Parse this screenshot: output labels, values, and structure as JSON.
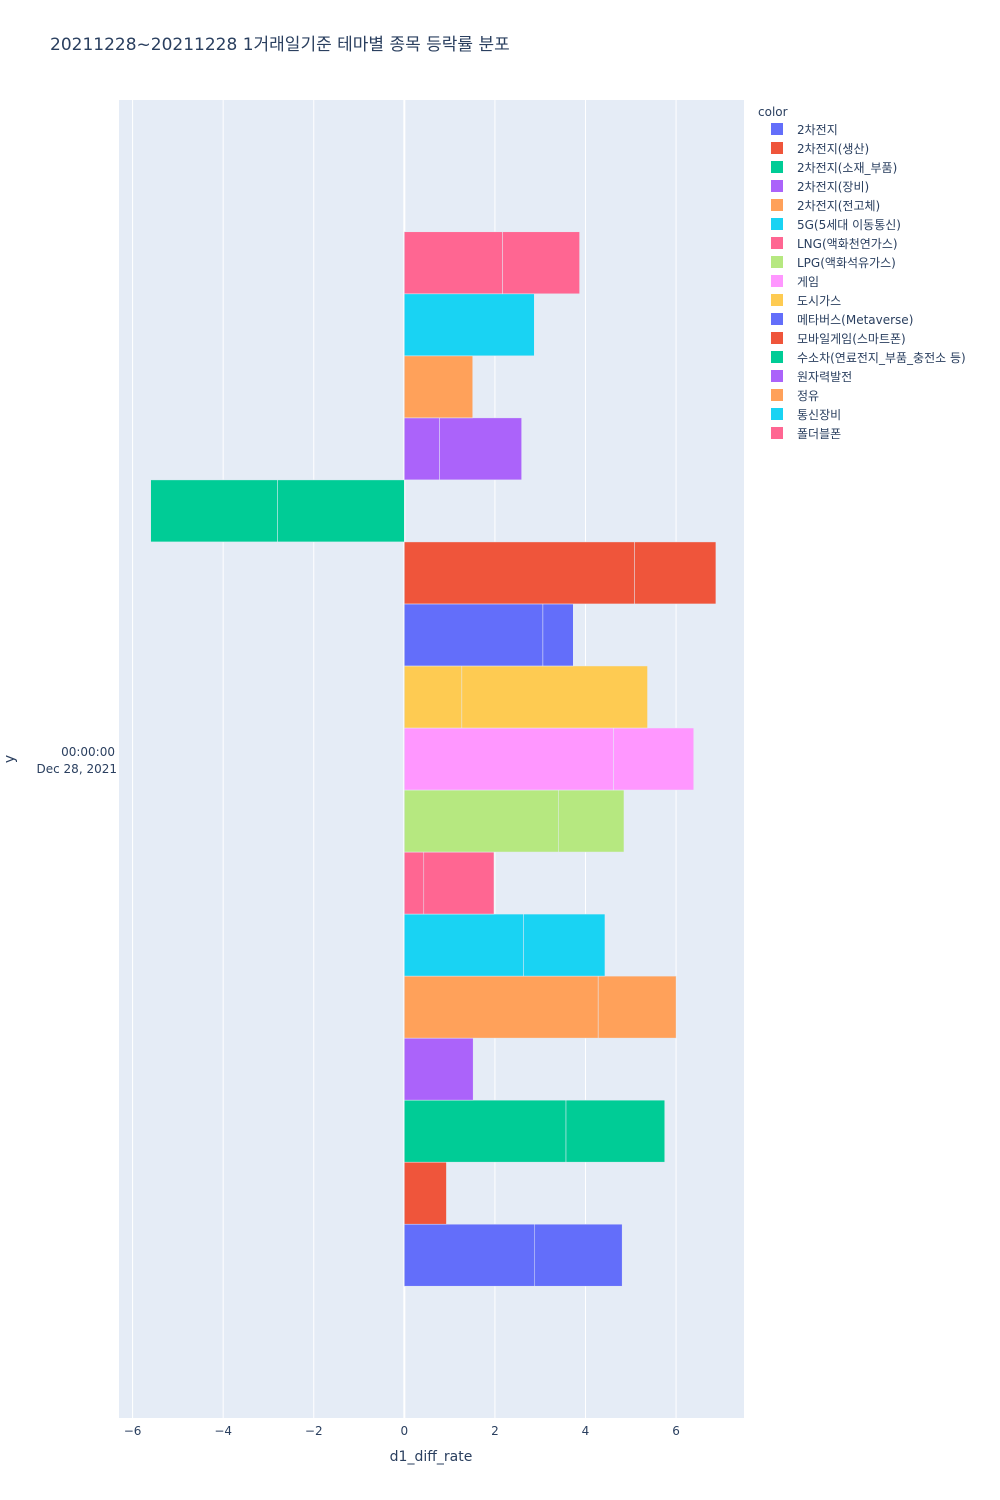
{
  "chart_data": {
    "type": "bar",
    "orientation": "horizontal",
    "barmode": "relative",
    "title": "20211228~20211228 1거래일기준 테마별 종목 등락률 분포",
    "xlabel": "d1_diff_rate",
    "ylabel": "y",
    "y_category_line1": "00:00:00",
    "y_category_line2": "Dec 28, 2021",
    "xlim": [
      -6.3,
      7.5
    ],
    "xticks": [
      -6,
      -4,
      -2,
      0,
      2,
      4,
      6
    ],
    "xtick_labels": [
      "−6",
      "−4",
      "−2",
      "0",
      "2",
      "4",
      "6"
    ],
    "grid": true,
    "legend_title": "color",
    "legend_position": "right",
    "series": [
      {
        "name": "2차전지",
        "color": "#636efa",
        "segments": [
          2.88,
          1.93
        ]
      },
      {
        "name": "2차전지(생산)",
        "color": "#EF553B",
        "segments": [
          0.93
        ]
      },
      {
        "name": "2차전지(소재_부품)",
        "color": "#00cc96",
        "segments": [
          3.57,
          2.18
        ]
      },
      {
        "name": "2차전지(장비)",
        "color": "#ab63fa",
        "segments": [
          1.52
        ]
      },
      {
        "name": "2차전지(전고체)",
        "color": "#FFA15A",
        "segments": [
          4.28,
          1.72
        ]
      },
      {
        "name": "5G(5세대 이동통신)",
        "color": "#19d3f3",
        "segments": [
          2.63,
          1.8
        ]
      },
      {
        "name": "LNG(액화천연가스)",
        "color": "#FF6692",
        "segments": [
          0.43,
          1.55
        ]
      },
      {
        "name": "LPG(액화석유가스)",
        "color": "#B6E880",
        "segments": [
          3.4,
          1.45
        ]
      },
      {
        "name": "게임",
        "color": "#FF97FF",
        "segments": [
          4.62,
          1.77
        ]
      },
      {
        "name": "도시가스",
        "color": "#FECB52",
        "segments": [
          1.27,
          4.1
        ]
      },
      {
        "name": "메타버스(Metaverse)",
        "color": "#636efa",
        "segments": [
          3.06,
          0.67
        ]
      },
      {
        "name": "모바일게임(스마트폰)",
        "color": "#EF553B",
        "segments": [
          5.08,
          1.8
        ]
      },
      {
        "name": "수소차(연료전지_부품_충전소 등)",
        "color": "#00cc96",
        "segments": [
          -2.8,
          -2.8
        ]
      },
      {
        "name": "원자력발전",
        "color": "#ab63fa",
        "segments": [
          0.78,
          1.81
        ]
      },
      {
        "name": "정유",
        "color": "#FFA15A",
        "segments": [
          1.51
        ]
      },
      {
        "name": "통신장비",
        "color": "#19d3f3",
        "segments": [
          2.87
        ]
      },
      {
        "name": "폴더블폰",
        "color": "#FF6692",
        "segments": [
          2.17,
          1.7
        ]
      }
    ]
  }
}
